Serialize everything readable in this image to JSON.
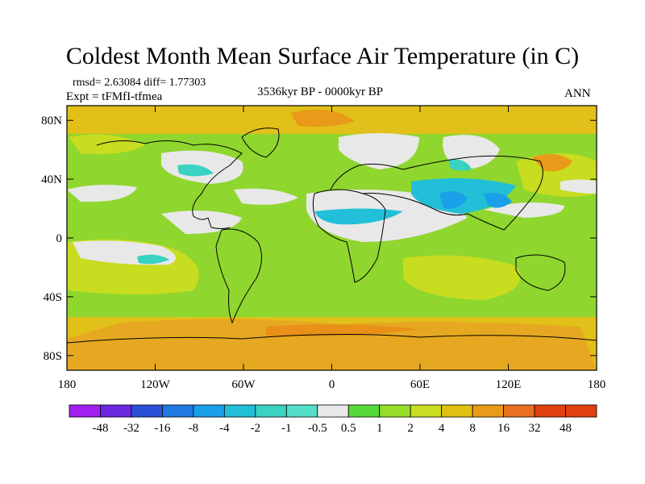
{
  "title": "Coldest Month Mean Surface Air Temperature (in C)",
  "stats": "rmsd= 2.63084 diff= 1.77303",
  "experiment": "Expt = tFMfI-tfmea",
  "period": "3536kyr BP - 0000kyr BP",
  "season": "ANN",
  "map": {
    "lat_ticks": [
      {
        "label": "80N",
        "value": 80
      },
      {
        "label": "40N",
        "value": 40
      },
      {
        "label": "0",
        "value": 0
      },
      {
        "label": "40S",
        "value": -40
      },
      {
        "label": "80S",
        "value": -80
      }
    ],
    "lon_ticks": [
      {
        "label": "180",
        "value": -180
      },
      {
        "label": "120W",
        "value": -120
      },
      {
        "label": "60W",
        "value": -60
      },
      {
        "label": "0",
        "value": 0
      },
      {
        "label": "60E",
        "value": 60
      },
      {
        "label": "120E",
        "value": 120
      },
      {
        "label": "180",
        "value": 180
      }
    ],
    "lat_range": [
      -90,
      90
    ],
    "lon_range": [
      -180,
      180
    ]
  },
  "colorbar": {
    "labels": [
      "-48",
      "-32",
      "-16",
      "-8",
      "-4",
      "-2",
      "-1",
      "-0.5",
      "0.5",
      "1",
      "2",
      "4",
      "8",
      "16",
      "32",
      "48"
    ],
    "colors": [
      "#a020f0",
      "#6a28e0",
      "#2c4fd8",
      "#1f79e0",
      "#1aa0e8",
      "#22c0d8",
      "#3ad2c0",
      "#55ddc8",
      "#e8e8e8",
      "#55d83a",
      "#98dc2a",
      "#c8dc20",
      "#e0bf10",
      "#e89a18",
      "#e87020",
      "#e04010",
      "#e04010"
    ]
  }
}
